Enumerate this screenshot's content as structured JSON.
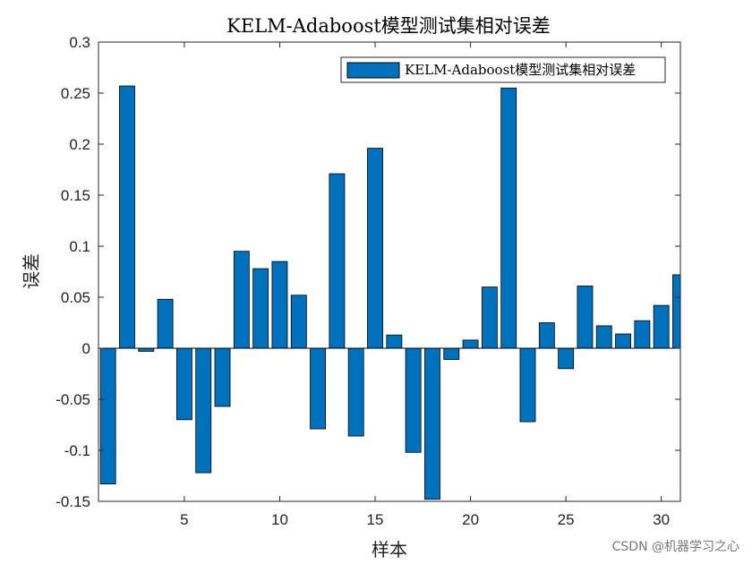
{
  "chart_data": {
    "type": "bar",
    "title": "KELM-Adaboost模型测试集相对误差",
    "xlabel": "样本",
    "ylabel": "误差",
    "xlim": [
      0.5,
      31
    ],
    "ylim": [
      -0.15,
      0.3
    ],
    "x_ticks": [
      5,
      10,
      15,
      20,
      25,
      30
    ],
    "y_ticks": [
      -0.15,
      -0.1,
      -0.05,
      0,
      0.05,
      0.1,
      0.15,
      0.2,
      0.25,
      0.3
    ],
    "y_tick_labels": [
      "-0.15",
      "-0.1",
      "-0.05",
      "0",
      "0.05",
      "0.1",
      "0.15",
      "0.2",
      "0.25",
      "0.3"
    ],
    "legend_position": "top-right",
    "grid": false,
    "series": [
      {
        "name": "KELM-Adaboost模型测试集相对误差",
        "color": "#0072BD",
        "x": [
          1,
          2,
          3,
          4,
          5,
          6,
          7,
          8,
          9,
          10,
          11,
          12,
          13,
          14,
          15,
          16,
          17,
          18,
          19,
          20,
          21,
          22,
          23,
          24,
          25,
          26,
          27,
          28,
          29,
          30,
          31
        ],
        "values": [
          -0.133,
          0.257,
          -0.003,
          0.048,
          -0.07,
          -0.122,
          -0.057,
          0.095,
          0.078,
          0.085,
          0.052,
          -0.079,
          0.171,
          -0.086,
          0.196,
          0.013,
          -0.102,
          -0.148,
          -0.011,
          0.008,
          0.06,
          0.255,
          -0.072,
          0.025,
          -0.02,
          0.061,
          0.022,
          0.014,
          0.027,
          0.042,
          0.072
        ]
      }
    ]
  },
  "watermark": "CSDN @机器学习之心"
}
